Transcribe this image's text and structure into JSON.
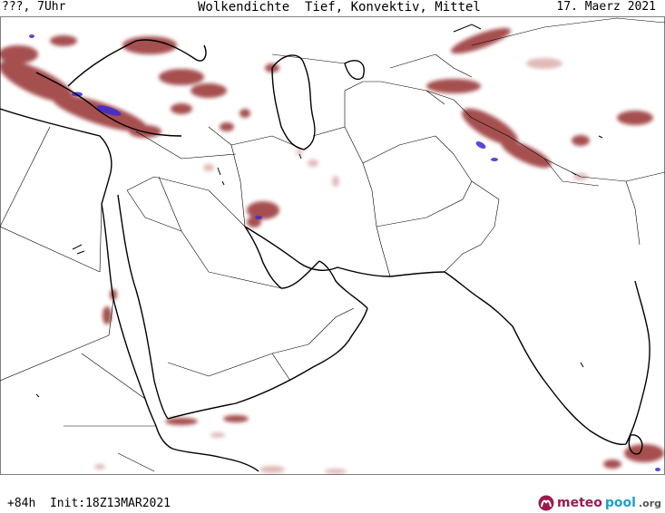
{
  "header": {
    "left": "???, 7Uhr",
    "title": "Wolkendichte  Tief, Konvektiv, Mittel",
    "date": "17. Maerz 2021"
  },
  "footer": {
    "run": "+84h  Init:18Z13MAR2021"
  },
  "brand": {
    "meteo": "meteo",
    "pool": "pool",
    "org": ".org",
    "logo_icon": "meteopool-logo-icon"
  },
  "colors": {
    "cloud": "#9b3a3a",
    "cloud_light": "#d9a8a8",
    "heavy": "#3a2ad6",
    "border": "#000000"
  }
}
